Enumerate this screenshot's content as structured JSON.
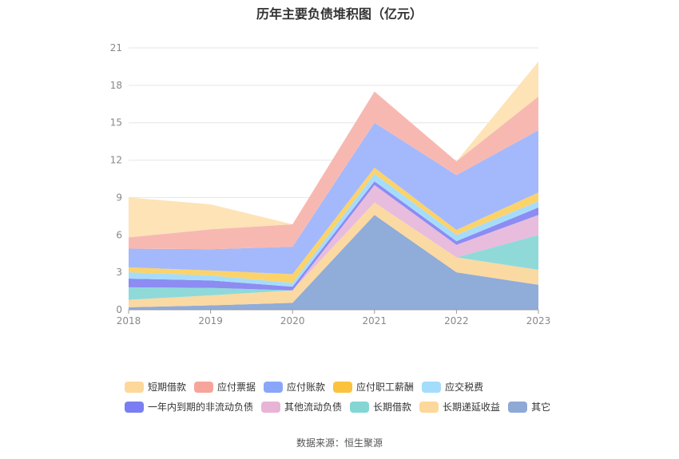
{
  "chart_data": {
    "type": "area",
    "stacked": true,
    "title": "历年主要负债堆积图（亿元）",
    "categories": [
      "2018",
      "2019",
      "2020",
      "2021",
      "2022",
      "2023"
    ],
    "ylim": [
      0,
      21
    ],
    "yticks": [
      0,
      3,
      6,
      9,
      12,
      15,
      18,
      21
    ],
    "grid": true,
    "legend_position": "bottom",
    "series": [
      {
        "name": "其它",
        "color": "#90acd8",
        "values": [
          0.2,
          0.35,
          0.55,
          7.6,
          3.0,
          2.0
        ]
      },
      {
        "name": "长期递延收益",
        "color": "#fbd9a3",
        "values": [
          0.6,
          0.8,
          1.0,
          1.0,
          1.2,
          1.2
        ]
      },
      {
        "name": "长期借款",
        "color": "#8fdad9",
        "values": [
          1.0,
          0.6,
          0.0,
          0.0,
          0.0,
          2.8
        ]
      },
      {
        "name": "其他流动负债",
        "color": "#e8bcdc",
        "values": [
          0.0,
          0.0,
          0.0,
          1.4,
          1.0,
          1.6
        ]
      },
      {
        "name": "一年内到期的非流动负债",
        "color": "#8c8cf2",
        "values": [
          0.7,
          0.6,
          0.3,
          0.3,
          0.3,
          0.6
        ]
      },
      {
        "name": "应交税费",
        "color": "#a6dcfb",
        "values": [
          0.5,
          0.4,
          0.3,
          0.6,
          0.5,
          0.5
        ]
      },
      {
        "name": "应付职工薪酬",
        "color": "#fbd36a",
        "values": [
          0.4,
          0.4,
          0.7,
          0.5,
          0.4,
          0.7
        ]
      },
      {
        "name": "应付账款",
        "color": "#a3b9fb",
        "values": [
          1.5,
          1.7,
          2.2,
          3.6,
          4.4,
          5.0
        ]
      },
      {
        "name": "应付票据",
        "color": "#f8b8b2",
        "values": [
          0.9,
          1.6,
          1.8,
          2.5,
          1.1,
          2.7
        ]
      },
      {
        "name": "短期借款",
        "color": "#fde3b6",
        "values": [
          3.2,
          2.0,
          0.0,
          0.0,
          0.0,
          2.8
        ]
      }
    ]
  },
  "legend_rows": [
    [
      "短期借款",
      "应付票据",
      "应付账款",
      "应付职工薪酬",
      "应交税费"
    ],
    [
      "一年内到期的非流动负债",
      "其他流动负债",
      "长期借款",
      "长期递延收益",
      "其它"
    ]
  ],
  "legend_colors": {
    "短期借款": "#fdd89a",
    "应付票据": "#f7a59a",
    "应付账款": "#8aa6f8",
    "应付职工薪酬": "#fbc33d",
    "应交税费": "#a3ddfb",
    "一年内到期的非流动负债": "#7b7ef2",
    "其他流动负债": "#e7b4d6",
    "长期借款": "#84d6d4",
    "长期递延收益": "#fdd89a",
    "其它": "#8ea9d6"
  },
  "source": "数据来源：恒生聚源"
}
